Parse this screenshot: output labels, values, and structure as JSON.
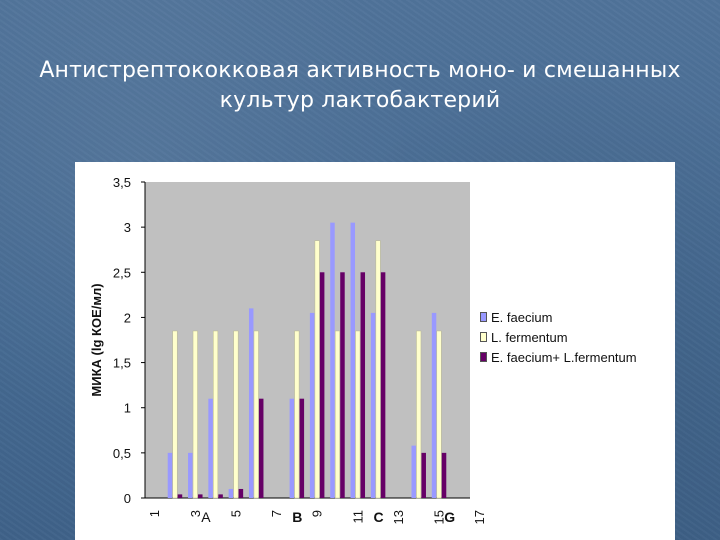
{
  "slide": {
    "title_line1": "Антистрептококковая активность моно- и смешанных",
    "title_line2": "культур лактобактерий"
  },
  "chart_data": {
    "type": "bar",
    "ylabel": "МИКА (lg КОЕ/мл)",
    "ylim": [
      0,
      3.5
    ],
    "y_ticks": [
      "0",
      "0,5",
      "1",
      "1,5",
      "2",
      "2,5",
      "3",
      "3,5"
    ],
    "categories": [
      "1",
      "2",
      "3",
      "4",
      "5",
      "6",
      "7",
      "8",
      "9",
      "10",
      "11",
      "12",
      "13",
      "14",
      "15",
      "16"
    ],
    "x_tick_labels": [
      "1",
      "3",
      "5",
      "7",
      "9",
      "11",
      "13",
      "15",
      "17"
    ],
    "group_labels": [
      "A",
      "B",
      "C",
      "G"
    ],
    "plot_background": "#c0c0c0",
    "series": [
      {
        "name": "E. faecium",
        "color": "#9999ff",
        "values": [
          0,
          0.5,
          0.5,
          1.1,
          0.1,
          2.1,
          0,
          1.1,
          2.05,
          3.05,
          3.05,
          2.05,
          0,
          0.58,
          2.05,
          0
        ]
      },
      {
        "name": "L. fermentum",
        "color": "#ffffcc",
        "values": [
          0,
          1.85,
          1.85,
          1.85,
          1.85,
          1.85,
          0,
          1.85,
          2.85,
          1.85,
          1.85,
          2.85,
          0,
          1.85,
          1.85,
          0
        ]
      },
      {
        "name": "E. faecium+ L.fermentum",
        "color": "#660066",
        "values": [
          0,
          0.04,
          0.04,
          0.04,
          0.1,
          1.1,
          0,
          1.1,
          2.5,
          2.5,
          2.5,
          2.5,
          0,
          0.5,
          0.5,
          0
        ]
      }
    ]
  }
}
